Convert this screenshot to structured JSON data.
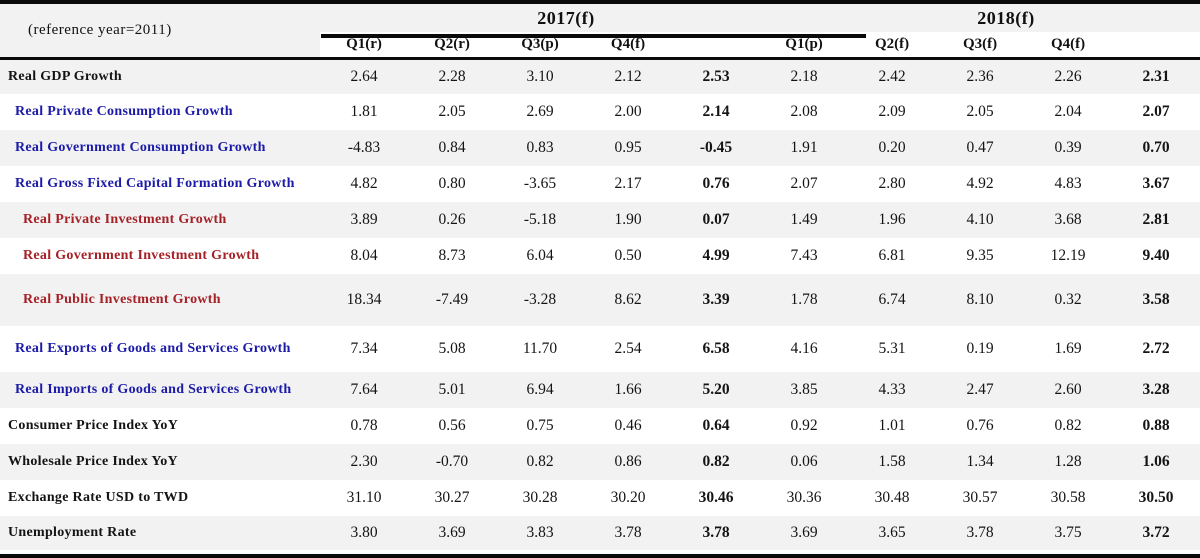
{
  "table": {
    "reference_label": "(reference year=2011)",
    "year_groups": [
      {
        "label": "2017(f)"
      },
      {
        "label": "2018(f)"
      }
    ],
    "quarter_headers": [
      "Q1(r)",
      "Q2(r)",
      "Q3(p)",
      "Q4(f)",
      "",
      "Q1(p)",
      "Q2(f)",
      "Q3(f)",
      "Q4(f)",
      ""
    ],
    "bold_value_columns": [
      4,
      9
    ],
    "rows": [
      {
        "label": "Real GDP Growth",
        "color": "black",
        "indent": 0,
        "values": [
          "2.64",
          "2.28",
          "3.10",
          "2.12",
          "2.53",
          "2.18",
          "2.42",
          "2.36",
          "2.26",
          "2.31"
        ]
      },
      {
        "label": "Real Private Consumption Growth",
        "color": "blue",
        "indent": 1,
        "values": [
          "1.81",
          "2.05",
          "2.69",
          "2.00",
          "2.14",
          "2.08",
          "2.09",
          "2.05",
          "2.04",
          "2.07"
        ]
      },
      {
        "label": "Real Government Consumption Growth",
        "color": "blue",
        "indent": 1,
        "values": [
          "-4.83",
          "0.84",
          "0.83",
          "0.95",
          "-0.45",
          "1.91",
          "0.20",
          "0.47",
          "0.39",
          "0.70"
        ]
      },
      {
        "label": "Real Gross Fixed Capital Formation Growth",
        "color": "blue",
        "indent": 1,
        "values": [
          "4.82",
          "0.80",
          "-3.65",
          "2.17",
          "0.76",
          "2.07",
          "2.80",
          "4.92",
          "4.83",
          "3.67"
        ]
      },
      {
        "label": "Real Private Investment Growth",
        "color": "red",
        "indent": 2,
        "values": [
          "3.89",
          "0.26",
          "-5.18",
          "1.90",
          "0.07",
          "1.49",
          "1.96",
          "4.10",
          "3.68",
          "2.81"
        ]
      },
      {
        "label": "Real Government Investment Growth",
        "color": "red",
        "indent": 2,
        "values": [
          "8.04",
          "8.73",
          "6.04",
          "0.50",
          "4.99",
          "7.43",
          "6.81",
          "9.35",
          "12.19",
          "9.40"
        ]
      },
      {
        "label": "Real Public Investment Growth",
        "color": "red",
        "indent": 2,
        "values": [
          "18.34",
          "-7.49",
          "-3.28",
          "8.62",
          "3.39",
          "1.78",
          "6.74",
          "8.10",
          "0.32",
          "3.58"
        ]
      },
      {
        "label": "Real Exports of Goods and Services Growth",
        "color": "blue",
        "indent": 1,
        "values": [
          "7.34",
          "5.08",
          "11.70",
          "2.54",
          "6.58",
          "4.16",
          "5.31",
          "0.19",
          "1.69",
          "2.72"
        ]
      },
      {
        "label": "Real Imports of Goods and Services Growth",
        "color": "blue",
        "indent": 1,
        "values": [
          "7.64",
          "5.01",
          "6.94",
          "1.66",
          "5.20",
          "3.85",
          "4.33",
          "2.47",
          "2.60",
          "3.28"
        ]
      },
      {
        "label": "Consumer Price Index YoY",
        "color": "black",
        "indent": 0,
        "values": [
          "0.78",
          "0.56",
          "0.75",
          "0.46",
          "0.64",
          "0.92",
          "1.01",
          "0.76",
          "0.82",
          "0.88"
        ]
      },
      {
        "label": "Wholesale Price Index YoY",
        "color": "black",
        "indent": 0,
        "values": [
          "2.30",
          "-0.70",
          "0.82",
          "0.86",
          "0.82",
          "0.06",
          "1.58",
          "1.34",
          "1.28",
          "1.06"
        ]
      },
      {
        "label": "Exchange Rate USD to TWD",
        "color": "black",
        "indent": 0,
        "values": [
          "31.10",
          "30.27",
          "30.28",
          "30.20",
          "30.46",
          "30.36",
          "30.48",
          "30.57",
          "30.58",
          "30.50"
        ]
      },
      {
        "label": "Unemployment Rate",
        "color": "black",
        "indent": 0,
        "values": [
          "3.80",
          "3.69",
          "3.83",
          "3.78",
          "3.78",
          "3.69",
          "3.65",
          "3.78",
          "3.75",
          "3.72"
        ]
      }
    ]
  },
  "colors": {
    "label_blue": "#1b1ba8",
    "label_red": "#a52127",
    "row_stripe": "#f2f2f2",
    "rule_black": "#0a0a0a"
  }
}
